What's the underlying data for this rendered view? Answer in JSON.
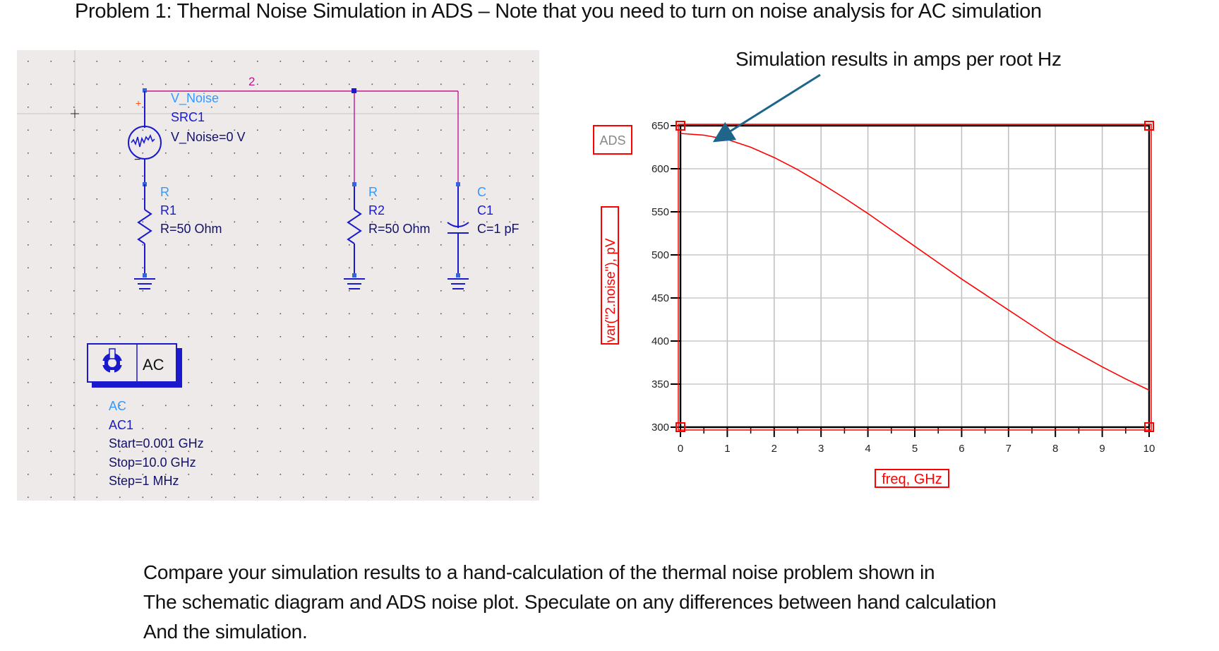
{
  "page": {
    "title": "Problem 1: Thermal Noise Simulation in ADS – Note that you need to turn on noise analysis for AC simulation",
    "annotation": "Simulation results in amps per root Hz",
    "question_lines": [
      "Compare your simulation results to a hand-calculation of the thermal noise problem shown in",
      "The schematic diagram and ADS noise plot.  Speculate on any differences between hand calculation",
      "And the simulation."
    ]
  },
  "schematic": {
    "net_label": "2",
    "source": {
      "type": "V_Noise",
      "name": "SRC1",
      "value": "V_Noise=0 V",
      "plus": "+",
      "minus": "−"
    },
    "r1": {
      "type": "R",
      "name": "R1",
      "value": "R=50 Ohm"
    },
    "r2": {
      "type": "R",
      "name": "R2",
      "value": "R=50 Ohm"
    },
    "c1": {
      "type": "C",
      "name": "C1",
      "value": "C=1 pF"
    },
    "ac_block": {
      "label": "AC",
      "type": "AC",
      "name": "AC1",
      "start": "Start=0.001 GHz",
      "stop": "Stop=10.0 GHz",
      "step": "Step=1 MHz"
    },
    "colors": {
      "wire": "#c0178a",
      "component": "#1a1acc",
      "type_label": "#3399ff",
      "background": "#eeeaea"
    }
  },
  "chart_data": {
    "type": "line",
    "title": "",
    "logo": "ADS",
    "xlabel": "freq, GHz",
    "ylabel": "var(\"2.noise\"), pV",
    "x_ticks": [
      "0",
      "1",
      "2",
      "3",
      "4",
      "5",
      "6",
      "7",
      "8",
      "9",
      "10"
    ],
    "y_ticks": [
      "650",
      "600",
      "550",
      "500",
      "450",
      "400",
      "350",
      "300"
    ],
    "xlim": [
      0,
      10
    ],
    "ylim": [
      300,
      650
    ],
    "grid": true,
    "series": [
      {
        "name": "var(\"2.noise\")",
        "color": "#ff0000",
        "x": [
          0,
          0.5,
          1,
          1.5,
          2,
          2.5,
          3,
          3.5,
          4,
          4.5,
          5,
          5.5,
          6,
          6.5,
          7,
          7.5,
          8,
          8.5,
          9,
          9.5,
          10
        ],
        "y": [
          641,
          639,
          634,
          625,
          613,
          599,
          583,
          566,
          548,
          529,
          510,
          491,
          472,
          454,
          436,
          418,
          400,
          385,
          370,
          356,
          343
        ]
      }
    ]
  }
}
